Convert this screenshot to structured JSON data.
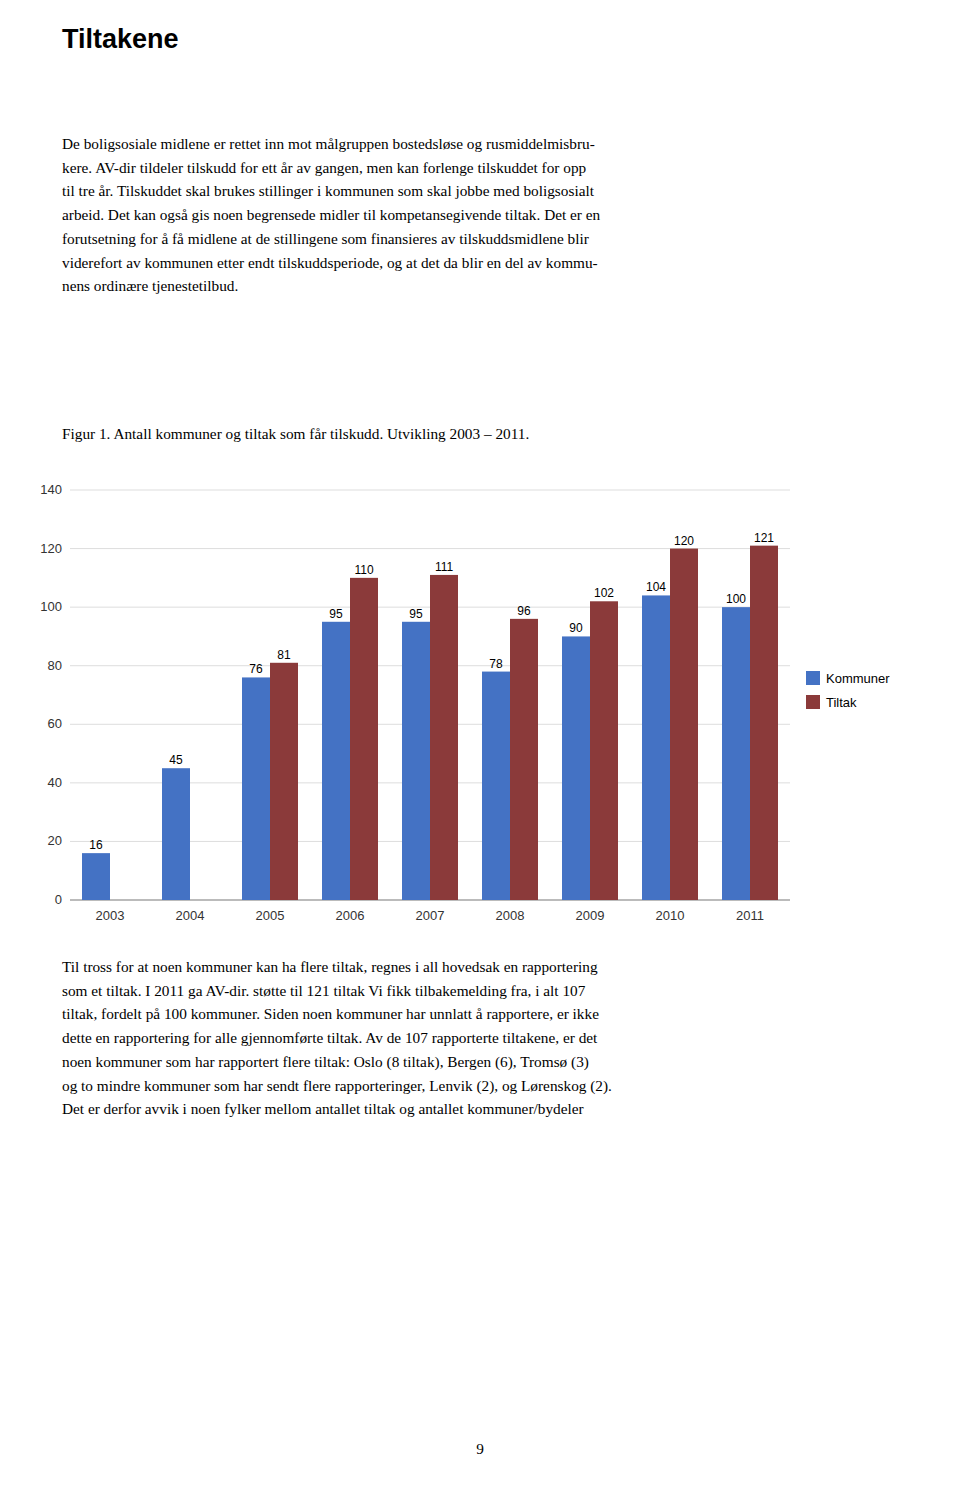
{
  "page": {
    "title": "Tiltakene",
    "paragraphs": [
      "De boligsosiale midlene er rettet inn mot målgruppen bostedsløse og rusmiddelmisbru-\nkere. AV-dir tildeler tilskudd for ett år av gangen, men kan forlenge tilskuddet for opp\ntil tre år. Tilskuddet skal brukes stillinger i kommunen som skal jobbe med boligsosialt\narbeid. Det kan også gis noen begrensede midler til kompetansegivende tiltak. Det er en\nforutsetning for å få midlene at de stillingene som finansieres av tilskuddsmidlene blir\nviderefort av kommunen etter endt tilskuddsperiode, og at det da blir en del av kommu-\nnens ordinære tjenestetilbud.",
      "Til tross for at noen kommuner kan ha flere tiltak, regnes i all hovedsak en rapportering\nsom et tiltak. I 2011 ga AV-dir. støtte til 121 tiltak Vi fikk tilbakemelding fra, i alt 107\ntiltak, fordelt på 100 kommuner. Siden noen kommuner har unnlatt å rapportere, er ikke\ndette en rapportering for alle gjennomførte tiltak. Av de 107 rapporterte tiltakene, er det\nnoen kommuner som har rapportert flere tiltak: Oslo (8 tiltak), Bergen (6), Tromsø (3)\nog to mindre kommuner som har sendt flere rapporteringer, Lenvik (2), og Lørenskog (2).\nDet er derfor avvik i noen fylker mellom antallet tiltak og antallet kommuner/bydeler"
    ],
    "page_number": "9"
  },
  "chart_data": {
    "type": "bar",
    "title": "Figur 1. Antall kommuner og tiltak som får tilskudd. Utvikling 2003 – 2011.",
    "categories": [
      "2003",
      "2004",
      "2005",
      "2006",
      "2007",
      "2008",
      "2009",
      "2010",
      "2011"
    ],
    "series": [
      {
        "name": "Kommuner",
        "color": "#4472C4",
        "values": [
          16,
          45,
          76,
          95,
          95,
          78,
          90,
          104,
          100
        ]
      },
      {
        "name": "Tiltak",
        "color": "#8B3A3A",
        "values": [
          null,
          null,
          81,
          110,
          111,
          96,
          102,
          120,
          121
        ]
      }
    ],
    "ylim": [
      0,
      140
    ],
    "yticks": [
      0,
      20,
      40,
      60,
      80,
      100,
      120,
      140
    ],
    "grid": true,
    "legend": "right",
    "data_labels": true
  }
}
